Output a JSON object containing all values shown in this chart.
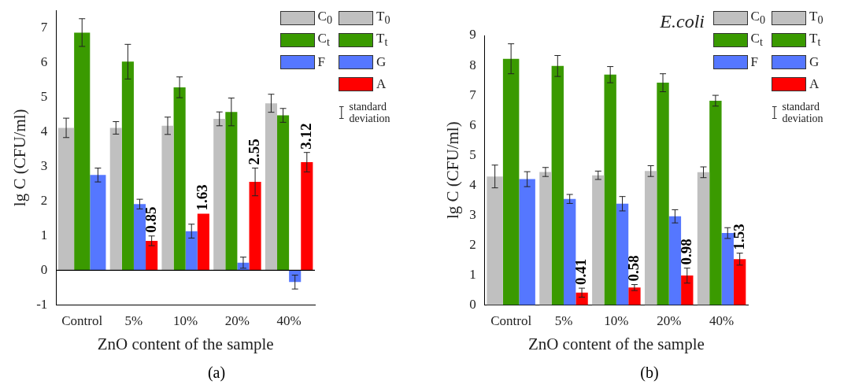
{
  "chart_data": [
    {
      "type": "bar",
      "xlabel": "ZnO content of the sample",
      "ylabel": "lg C (CFU/ml)",
      "categories": [
        "Control",
        "5%",
        "10%",
        "20%",
        "40%"
      ],
      "ylim": [
        -1,
        7.5
      ],
      "yticks": [
        -1,
        0,
        1,
        2,
        3,
        4,
        5,
        6,
        7
      ],
      "grid": false,
      "legend": "top right",
      "ref_lines": [
        {
          "axis": "y",
          "value": 0,
          "color": "#000000"
        }
      ],
      "annotations": [
        "standard deviation",
        "(a)"
      ],
      "series": [
        {
          "name": "C$_{0}$",
          "color": "#c0c0c0",
          "values": [
            4.11,
            null,
            null,
            null,
            null
          ],
          "errors": [
            0.28,
            null,
            null,
            null,
            null
          ]
        },
        {
          "name": "C$_{t}$",
          "color": "#3a9a00",
          "values": [
            6.86,
            null,
            null,
            null,
            null
          ],
          "errors": [
            0.4,
            null,
            null,
            null,
            null
          ]
        },
        {
          "name": "F",
          "color": "#5577ff",
          "values": [
            2.75,
            null,
            null,
            null,
            null
          ],
          "errors": [
            0.2,
            null,
            null,
            null,
            null
          ]
        },
        {
          "name": "T$_{0}$",
          "color": "#c0c0c0",
          "values": [
            null,
            4.11,
            4.17,
            4.37,
            4.82
          ],
          "errors": [
            null,
            0.18,
            0.25,
            0.2,
            0.26
          ]
        },
        {
          "name": "T$_{t}$",
          "color": "#3a9a00",
          "values": [
            null,
            6.02,
            5.28,
            4.57,
            4.47
          ],
          "errors": [
            null,
            0.5,
            0.3,
            0.4,
            0.2
          ]
        },
        {
          "name": "G",
          "color": "#5577ff",
          "values": [
            null,
            1.91,
            1.13,
            0.22,
            -0.34
          ],
          "errors": [
            null,
            0.14,
            0.2,
            0.16,
            0.2
          ]
        },
        {
          "name": "A",
          "color": "#ff0000",
          "values": [
            null,
            0.85,
            1.63,
            2.55,
            3.12
          ],
          "errors": [
            null,
            0.14,
            null,
            0.4,
            0.28
          ],
          "value_labels": [
            null,
            "0.85",
            "1.63",
            "2.55",
            "3.12"
          ]
        }
      ]
    },
    {
      "type": "bar",
      "title": "E.coli",
      "xlabel": "ZnO content of the sample",
      "ylabel": "lg C (CFU/ml)",
      "categories": [
        "Control",
        "5%",
        "10%",
        "20%",
        "40%"
      ],
      "ylim": [
        0,
        9
      ],
      "yticks": [
        0,
        1,
        2,
        3,
        4,
        5,
        6,
        7,
        8,
        9
      ],
      "grid": false,
      "legend": "top right",
      "annotations": [
        "standard deviation",
        "(b)"
      ],
      "series": [
        {
          "name": "C$_{0}$",
          "color": "#c0c0c0",
          "values": [
            4.29,
            null,
            null,
            null,
            null
          ],
          "errors": [
            0.38,
            null,
            null,
            null,
            null
          ]
        },
        {
          "name": "C$_{t}$",
          "color": "#3a9a00",
          "values": [
            8.22,
            null,
            null,
            null,
            null
          ],
          "errors": [
            0.5,
            null,
            null,
            null,
            null
          ]
        },
        {
          "name": "F",
          "color": "#5577ff",
          "values": [
            4.2,
            null,
            null,
            null,
            null
          ],
          "errors": [
            0.25,
            null,
            null,
            null,
            null
          ]
        },
        {
          "name": "T$_{0}$",
          "color": "#c0c0c0",
          "values": [
            null,
            4.44,
            4.33,
            4.47,
            4.43
          ],
          "errors": [
            null,
            0.15,
            0.14,
            0.18,
            0.18
          ]
        },
        {
          "name": "T$_{t}$",
          "color": "#3a9a00",
          "values": [
            null,
            7.98,
            7.69,
            7.42,
            6.82
          ],
          "errors": [
            null,
            0.35,
            0.27,
            0.3,
            0.18
          ]
        },
        {
          "name": "G",
          "color": "#5577ff",
          "values": [
            null,
            3.54,
            3.38,
            2.96,
            2.4
          ],
          "errors": [
            null,
            0.15,
            0.24,
            0.22,
            0.18
          ]
        },
        {
          "name": "A",
          "color": "#ff0000",
          "values": [
            null,
            0.41,
            0.58,
            0.98,
            1.53
          ],
          "errors": [
            null,
            0.15,
            0.1,
            0.25,
            0.2
          ],
          "value_labels": [
            null,
            "0.41",
            "0.58",
            "0.98",
            "1.53"
          ]
        }
      ]
    }
  ]
}
